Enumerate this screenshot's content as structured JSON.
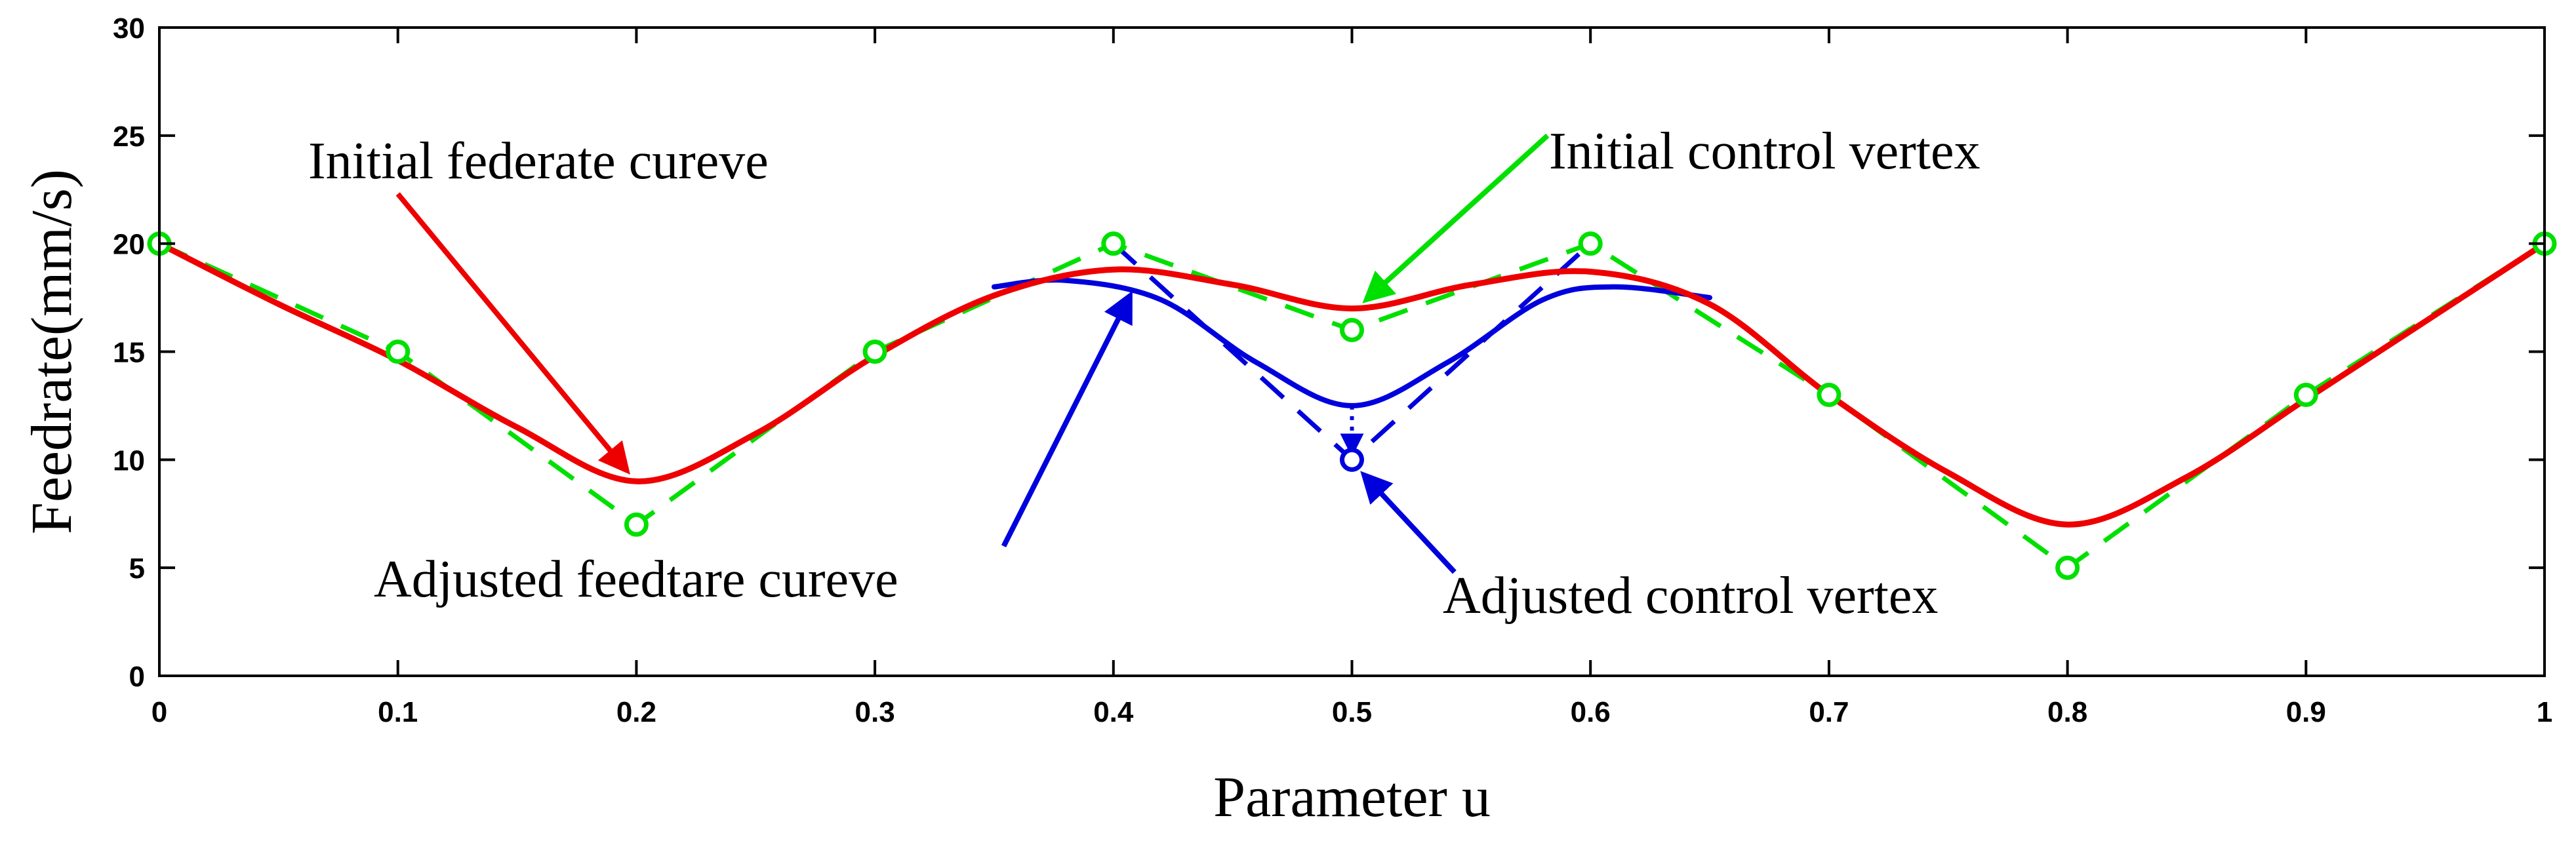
{
  "chart_data": {
    "type": "line",
    "xlabel": "Parameter u",
    "ylabel": "Feedrate(mm/s)",
    "xlim": [
      0,
      1
    ],
    "ylim": [
      0,
      30
    ],
    "x_ticks": [
      "0",
      "0.1",
      "0.2",
      "0.3",
      "0.4",
      "0.5",
      "0.6",
      "0.7",
      "0.8",
      "0.9",
      "1"
    ],
    "y_ticks": [
      "0",
      "5",
      "10",
      "15",
      "20",
      "25",
      "30"
    ],
    "grid": false,
    "series": [
      {
        "role": "initial-control-polygon",
        "style": "dashed",
        "color": "#00e000",
        "marker": "circle",
        "x": [
          0,
          0.1,
          0.2,
          0.3,
          0.4,
          0.5,
          0.6,
          0.7,
          0.8,
          0.9,
          1
        ],
        "y": [
          20,
          15,
          7,
          15,
          20,
          16,
          20,
          13,
          5,
          13,
          20
        ]
      },
      {
        "role": "adjusted-control-polygon",
        "style": "dashed",
        "color": "#0000dd",
        "marker": "circle",
        "x": [
          0.4,
          0.5,
          0.6
        ],
        "y": [
          20,
          10,
          20
        ]
      },
      {
        "role": "adjusted-curve",
        "style": "solid",
        "color": "#0000dd",
        "x": [
          0.35,
          0.38,
          0.42,
          0.46,
          0.5,
          0.54,
          0.58,
          0.61,
          0.65
        ],
        "y": [
          18.0,
          18.3,
          17.4,
          14.5,
          12.5,
          14.5,
          17.4,
          18.0,
          17.5
        ]
      },
      {
        "role": "initial-curve",
        "style": "solid",
        "color": "#ee0000",
        "x": [
          0,
          0.05,
          0.1,
          0.15,
          0.2,
          0.25,
          0.3,
          0.35,
          0.4,
          0.45,
          0.5,
          0.55,
          0.6,
          0.65,
          0.7,
          0.75,
          0.8,
          0.85,
          0.9,
          0.95,
          1
        ],
        "y": [
          20,
          17.2,
          14.6,
          11.5,
          9.0,
          11.2,
          14.8,
          17.6,
          18.8,
          18.1,
          17.0,
          18.1,
          18.7,
          17.2,
          13.0,
          9.4,
          7.0,
          9.2,
          12.8,
          16.4,
          20
        ]
      }
    ],
    "adjustment_arrow": {
      "x": 0.5,
      "from_y": 12.5,
      "to_y": 10.3,
      "style": "dotted",
      "color": "#0000dd"
    },
    "annotations": [
      {
        "text": "Initial federate cureve",
        "color": "#ee0000",
        "arrow_from": [
          0.1,
          22.3
        ],
        "arrow_to": [
          0.196,
          9.5
        ]
      },
      {
        "text": "Initial control vertex",
        "color": "#00e000",
        "arrow_from": [
          0.582,
          25.0
        ],
        "arrow_to": [
          0.506,
          17.4
        ]
      },
      {
        "text": "Adjusted feedtare cureve",
        "color": "#0000dd",
        "arrow_from": [
          0.354,
          6.0
        ],
        "arrow_to": [
          0.407,
          17.6
        ]
      },
      {
        "text": "Adjusted control vertex",
        "color": "#0000dd",
        "arrow_from": [
          0.543,
          4.8
        ],
        "arrow_to": [
          0.505,
          9.3
        ]
      }
    ]
  }
}
